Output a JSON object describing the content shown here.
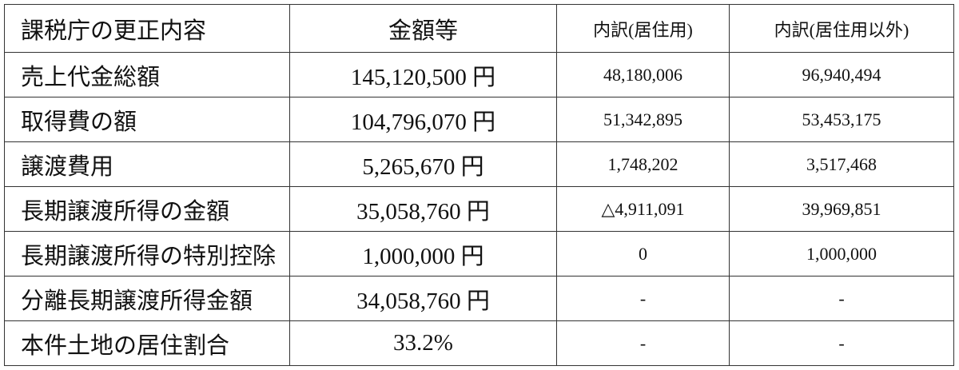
{
  "table": {
    "headers": [
      "課税庁の更正内容",
      "金額等",
      "内訳(居住用)",
      "内訳(居住用以外)"
    ],
    "rows": [
      {
        "item": "売上代金総額",
        "amount": "145,120,500 円",
        "residential": "48,180,006",
        "non_residential": "96,940,494"
      },
      {
        "item": "取得費の額",
        "amount": "104,796,070 円",
        "residential": "51,342,895",
        "non_residential": "53,453,175"
      },
      {
        "item": "譲渡費用",
        "amount": "5,265,670 円",
        "residential": "1,748,202",
        "non_residential": "3,517,468"
      },
      {
        "item": "長期譲渡所得の金額",
        "amount": "35,058,760 円",
        "residential": "△4,911,091",
        "non_residential": "39,969,851"
      },
      {
        "item": "長期譲渡所得の特別控除",
        "amount": "1,000,000 円",
        "residential": "0",
        "non_residential": "1,000,000"
      },
      {
        "item": "分離長期譲渡所得金額",
        "amount": "34,058,760 円",
        "residential": "-",
        "non_residential": "-"
      },
      {
        "item": "本件土地の居住割合",
        "amount": "33.2%",
        "residential": "-",
        "non_residential": "-"
      }
    ]
  }
}
